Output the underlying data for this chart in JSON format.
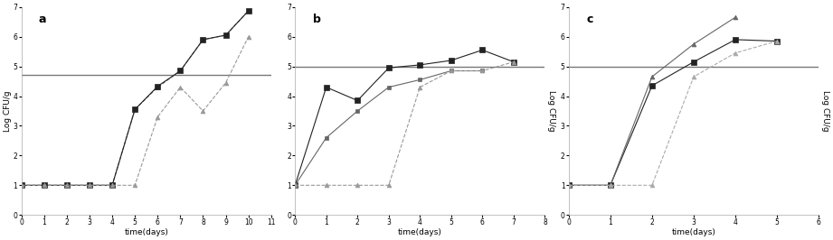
{
  "subplots": [
    {
      "label": "a",
      "xlabel": "time(days)",
      "ylabel": "Log CFU/g",
      "xlim": [
        0,
        11
      ],
      "ylim": [
        0,
        7
      ],
      "yticks": [
        0,
        1,
        2,
        3,
        4,
        5,
        6,
        7
      ],
      "xticks": [
        0,
        1,
        2,
        3,
        4,
        5,
        6,
        7,
        8,
        9,
        10,
        11
      ],
      "hline": 4.7,
      "ylabel_right": false,
      "series": [
        {
          "x": [
            0,
            1,
            2,
            3,
            4,
            5,
            6,
            7,
            8,
            9,
            10
          ],
          "y": [
            1,
            1,
            1,
            1,
            1,
            3.55,
            4.3,
            4.85,
            5.9,
            6.05,
            6.87
          ],
          "color": "#666666",
          "marker": "s",
          "markersize": 3.5,
          "linestyle": "--",
          "linewidth": 0.8
        },
        {
          "x": [
            0,
            1,
            2,
            3,
            4,
            5,
            6,
            7,
            8,
            9,
            10
          ],
          "y": [
            1,
            1,
            1,
            1,
            1,
            3.55,
            4.33,
            4.85,
            5.9,
            6.05,
            6.87
          ],
          "color": "#222222",
          "marker": "s",
          "markersize": 4.5,
          "linestyle": "-",
          "linewidth": 0.8
        },
        {
          "x": [
            0,
            1,
            2,
            3,
            4,
            5,
            6,
            7,
            8,
            9,
            10
          ],
          "y": [
            1,
            1,
            1,
            1,
            1,
            1,
            3.3,
            4.3,
            3.5,
            4.45,
            6.0
          ],
          "color": "#999999",
          "marker": "^",
          "markersize": 3.5,
          "linestyle": "--",
          "linewidth": 0.8
        }
      ]
    },
    {
      "label": "b",
      "xlabel": "time(days)",
      "ylabel": "Log CFU/g",
      "xlim": [
        0,
        8
      ],
      "ylim": [
        0,
        7
      ],
      "yticks": [
        0,
        1,
        2,
        3,
        4,
        5,
        6,
        7
      ],
      "xticks": [
        0,
        1,
        2,
        3,
        4,
        5,
        6,
        7,
        8
      ],
      "hline": 5.0,
      "ylabel_right": true,
      "series": [
        {
          "x": [
            0,
            1,
            2,
            3,
            4,
            5,
            6,
            7
          ],
          "y": [
            1,
            4.3,
            3.85,
            4.95,
            5.05,
            5.2,
            5.55,
            5.15
          ],
          "color": "#222222",
          "marker": "s",
          "markersize": 4.5,
          "linestyle": "-",
          "linewidth": 0.8
        },
        {
          "x": [
            0,
            1,
            2,
            3,
            4,
            5,
            6
          ],
          "y": [
            1,
            2.6,
            3.5,
            4.3,
            4.55,
            4.85,
            4.85
          ],
          "color": "#666666",
          "marker": "s",
          "markersize": 3.5,
          "linestyle": "-",
          "linewidth": 0.8
        },
        {
          "x": [
            0,
            1,
            2,
            3,
            4,
            5,
            6,
            7
          ],
          "y": [
            1,
            1,
            1,
            1,
            4.3,
            4.85,
            4.85,
            5.15
          ],
          "color": "#999999",
          "marker": "^",
          "markersize": 3.5,
          "linestyle": "--",
          "linewidth": 0.8
        }
      ]
    },
    {
      "label": "c",
      "xlabel": "time(days)",
      "ylabel": "Log CFU/g",
      "xlim": [
        0,
        6
      ],
      "ylim": [
        0,
        7
      ],
      "yticks": [
        0,
        1,
        2,
        3,
        4,
        5,
        6,
        7
      ],
      "xticks": [
        0,
        1,
        2,
        3,
        4,
        5,
        6
      ],
      "hline": 5.0,
      "ylabel_right": true,
      "series": [
        {
          "x": [
            0,
            1,
            2,
            3,
            4,
            5
          ],
          "y": [
            1,
            1,
            4.35,
            5.15,
            5.9,
            5.85
          ],
          "color": "#222222",
          "marker": "s",
          "markersize": 4.5,
          "linestyle": "-",
          "linewidth": 0.8
        },
        {
          "x": [
            0,
            1,
            2,
            3,
            4
          ],
          "y": [
            1,
            1,
            4.65,
            5.75,
            6.65
          ],
          "color": "#666666",
          "marker": "^",
          "markersize": 3.5,
          "linestyle": "-",
          "linewidth": 0.8
        },
        {
          "x": [
            0,
            1,
            2,
            3,
            4,
            5
          ],
          "y": [
            1,
            1,
            1,
            4.65,
            5.45,
            5.85
          ],
          "color": "#aaaaaa",
          "marker": "^",
          "markersize": 3.5,
          "linestyle": "--",
          "linewidth": 0.8
        }
      ]
    }
  ],
  "fig_bgcolor": "#ffffff",
  "spine_color": "#aaaaaa",
  "tick_fontsize": 5.5,
  "label_fontsize": 6.5,
  "subplot_label_fontsize": 9
}
